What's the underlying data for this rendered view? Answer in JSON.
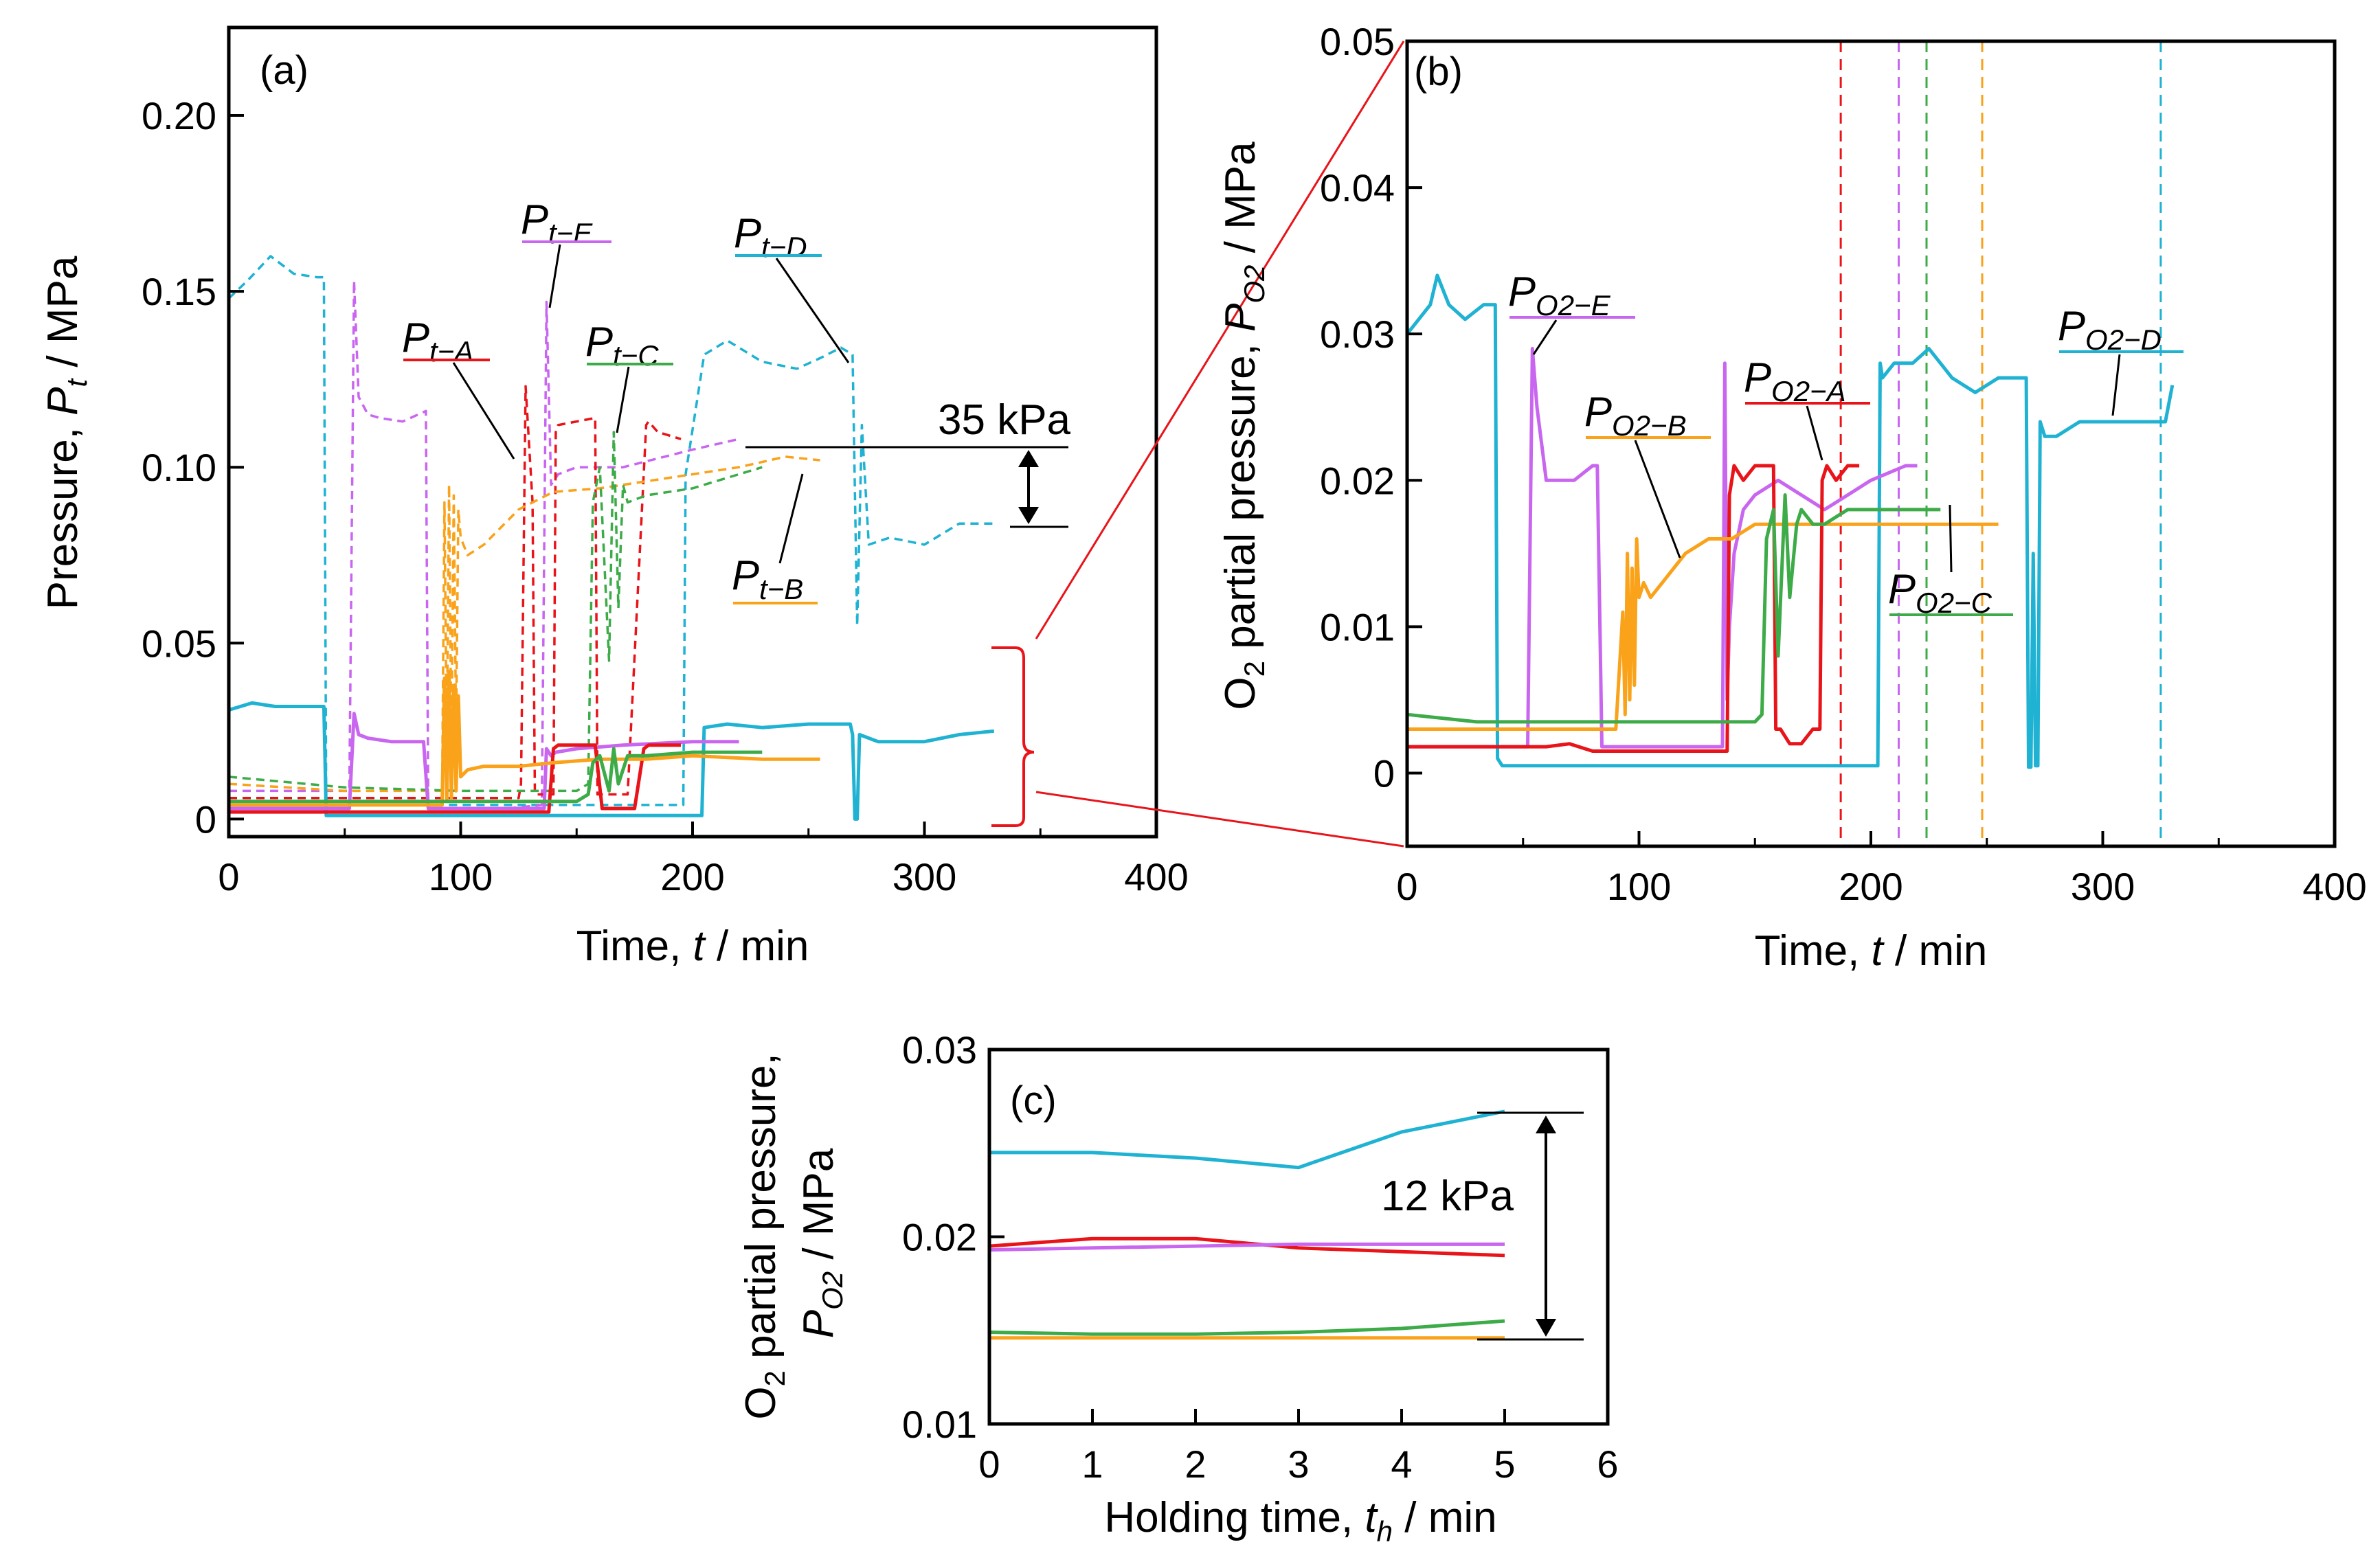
{
  "colors": {
    "A": "#e8141a",
    "B": "#f9a21a",
    "C": "#3cab48",
    "D": "#1fb2d2",
    "E": "#c966f0",
    "bracket": "#e8141a"
  },
  "chart_data": [
    {
      "id": "a",
      "type": "line",
      "panel_label": "(a)",
      "xlabel": "Time, t / min",
      "ylabel": "Pressure, Pt / MPa",
      "xlim": [
        0,
        400
      ],
      "ylim": [
        -0.005,
        0.225
      ],
      "xticks": [
        "0",
        "100",
        "200",
        "300",
        "400"
      ],
      "yticks": [
        "0",
        "0.05",
        "0.10",
        "0.15",
        "0.20"
      ],
      "yticks_values": [
        0,
        0.05,
        0.1,
        0.15,
        0.2
      ],
      "annotation": "35 kPa",
      "series": [
        {
          "key": "D",
          "name": "Pt−D",
          "style": "dashed",
          "x": [
            0,
            8,
            18,
            28,
            38,
            41,
            42,
            60,
            120,
            196,
            197,
            205,
            215,
            230,
            245,
            255,
            264,
            269,
            271,
            273,
            276,
            285,
            300,
            315,
            330
          ],
          "y": [
            0.148,
            0.153,
            0.16,
            0.155,
            0.154,
            0.154,
            0.004,
            0.004,
            0.004,
            0.004,
            0.098,
            0.132,
            0.136,
            0.13,
            0.128,
            0.131,
            0.134,
            0.132,
            0.055,
            0.112,
            0.078,
            0.08,
            0.078,
            0.084,
            0.084
          ]
        },
        {
          "key": "E",
          "name": "Pt−E",
          "style": "dashed",
          "x": [
            0,
            52,
            54,
            56,
            60,
            65,
            75,
            85,
            86,
            100,
            120,
            135,
            137,
            139,
            142,
            150,
            170,
            200,
            220
          ],
          "y": [
            0.008,
            0.008,
            0.153,
            0.12,
            0.115,
            0.114,
            0.113,
            0.116,
            0.003,
            0.003,
            0.003,
            0.004,
            0.147,
            0.095,
            0.098,
            0.1,
            0.1,
            0.105,
            0.108
          ]
        },
        {
          "key": "A",
          "name": "Pt−A",
          "style": "dashed",
          "x": [
            0,
            100,
            125,
            126,
            128,
            131,
            132,
            140,
            141,
            142,
            150,
            158,
            159,
            161,
            165,
            172,
            180,
            181,
            185,
            195
          ],
          "y": [
            0.006,
            0.006,
            0.006,
            0.01,
            0.123,
            0.09,
            0.007,
            0.007,
            0.11,
            0.112,
            0.113,
            0.114,
            0.007,
            0.007,
            0.007,
            0.007,
            0.112,
            0.113,
            0.11,
            0.108
          ]
        },
        {
          "key": "B",
          "name": "Pt−B",
          "style": "dashed",
          "x": [
            0,
            50,
            92,
            93,
            94,
            95,
            96,
            97,
            98,
            99,
            100,
            103,
            110,
            125,
            140,
            160,
            180,
            200,
            220,
            240,
            255
          ],
          "y": [
            0.01,
            0.008,
            0.008,
            0.09,
            0.02,
            0.095,
            0.02,
            0.092,
            0.025,
            0.088,
            0.08,
            0.075,
            0.078,
            0.088,
            0.093,
            0.094,
            0.096,
            0.098,
            0.1,
            0.103,
            0.102
          ]
        },
        {
          "key": "C",
          "name": "Pt−C",
          "style": "dashed",
          "x": [
            0,
            50,
            100,
            150,
            155,
            157,
            160,
            164,
            166,
            168,
            170,
            172,
            180,
            200,
            230
          ],
          "y": [
            0.012,
            0.009,
            0.008,
            0.008,
            0.01,
            0.09,
            0.1,
            0.045,
            0.11,
            0.06,
            0.095,
            0.09,
            0.092,
            0.094,
            0.1
          ]
        },
        {
          "key": "D",
          "name": "Pt−D",
          "style": "solid",
          "x": [
            0,
            10,
            20,
            40,
            41,
            42,
            100,
            150,
            203,
            204,
            205,
            215,
            230,
            250,
            265,
            268,
            269,
            270,
            271,
            272,
            280,
            300,
            315,
            330
          ],
          "y": [
            0.031,
            0.033,
            0.032,
            0.032,
            0.032,
            0.001,
            0.001,
            0.001,
            0.001,
            0.001,
            0.026,
            0.027,
            0.026,
            0.027,
            0.027,
            0.027,
            0.024,
            0.0,
            0.0,
            0.024,
            0.022,
            0.022,
            0.024,
            0.025
          ]
        },
        {
          "key": "E",
          "name": "Pt−E",
          "style": "solid",
          "x": [
            0,
            52,
            54,
            56,
            60,
            70,
            84,
            86,
            100,
            136,
            137,
            139,
            141,
            150,
            170,
            200,
            220
          ],
          "y": [
            0.003,
            0.003,
            0.03,
            0.024,
            0.023,
            0.022,
            0.022,
            0.003,
            0.003,
            0.003,
            0.02,
            0.018,
            0.019,
            0.02,
            0.021,
            0.022,
            0.022
          ]
        },
        {
          "key": "A",
          "name": "Pt−A",
          "style": "solid",
          "x": [
            0,
            100,
            138,
            140,
            142,
            150,
            158,
            161,
            175,
            179,
            181,
            195
          ],
          "y": [
            0.002,
            0.002,
            0.002,
            0.02,
            0.021,
            0.021,
            0.021,
            0.003,
            0.003,
            0.02,
            0.021,
            0.021
          ]
        },
        {
          "key": "B",
          "name": "Pt−B",
          "style": "solid",
          "x": [
            0,
            90,
            92,
            93,
            94,
            95,
            96,
            97,
            98,
            99,
            100,
            103,
            110,
            125,
            140,
            160,
            180,
            200,
            230,
            255
          ],
          "y": [
            0.004,
            0.004,
            0.004,
            0.04,
            0.005,
            0.042,
            0.006,
            0.038,
            0.008,
            0.035,
            0.012,
            0.014,
            0.015,
            0.015,
            0.016,
            0.017,
            0.017,
            0.018,
            0.017,
            0.017
          ]
        },
        {
          "key": "C",
          "name": "Pt−C",
          "style": "solid",
          "x": [
            0,
            100,
            150,
            155,
            157,
            160,
            164,
            166,
            168,
            172,
            180,
            200,
            230
          ],
          "y": [
            0.005,
            0.005,
            0.005,
            0.007,
            0.016,
            0.018,
            0.008,
            0.02,
            0.01,
            0.018,
            0.018,
            0.019,
            0.019
          ]
        }
      ]
    },
    {
      "id": "b",
      "type": "line",
      "panel_label": "(b)",
      "xlabel": "Time, t / min",
      "ylabel": "O2 partial pressure, PO2 / MPa",
      "xlim": [
        0,
        400
      ],
      "ylim": [
        -0.005,
        0.05
      ],
      "xticks": [
        "0",
        "100",
        "200",
        "300",
        "400"
      ],
      "yticks": [
        "0",
        "0.01",
        "0.02",
        "0.03",
        "0.04",
        "0.05"
      ],
      "yticks_values": [
        0,
        0.01,
        0.02,
        0.03,
        0.04,
        0.05
      ],
      "vlines": [
        {
          "key": "A",
          "x": 187
        },
        {
          "key": "E",
          "x": 212
        },
        {
          "key": "C",
          "x": 224
        },
        {
          "key": "B",
          "x": 248
        },
        {
          "key": "D",
          "x": 325
        }
      ],
      "series": [
        {
          "key": "D",
          "name": "PO2−D",
          "x": [
            0,
            5,
            10,
            13,
            18,
            25,
            33,
            38,
            39,
            41,
            80,
            150,
            200,
            203,
            204,
            205,
            210,
            218,
            225,
            235,
            245,
            255,
            265,
            267,
            268,
            269,
            270,
            271,
            272,
            273,
            275,
            280,
            290,
            300,
            310,
            320,
            327,
            330
          ],
          "y": [
            0.03,
            0.031,
            0.032,
            0.034,
            0.032,
            0.031,
            0.032,
            0.032,
            0.001,
            0.0005,
            0.0005,
            0.0005,
            0.0005,
            0.0005,
            0.028,
            0.027,
            0.028,
            0.028,
            0.029,
            0.027,
            0.026,
            0.027,
            0.027,
            0.027,
            0.0004,
            0.0004,
            0.015,
            0.0005,
            0.0005,
            0.024,
            0.023,
            0.023,
            0.024,
            0.024,
            0.024,
            0.024,
            0.024,
            0.0265
          ]
        },
        {
          "key": "E",
          "name": "PO2−E",
          "x": [
            0,
            50,
            52,
            54,
            56,
            60,
            65,
            72,
            80,
            82,
            84,
            100,
            120,
            135,
            136,
            137,
            138,
            139,
            141,
            145,
            150,
            160,
            170,
            180,
            190,
            200,
            215,
            220
          ],
          "y": [
            0.0018,
            0.0018,
            0.0018,
            0.029,
            0.025,
            0.02,
            0.02,
            0.02,
            0.021,
            0.021,
            0.0018,
            0.0018,
            0.0018,
            0.0018,
            0.0018,
            0.028,
            0.005,
            0.01,
            0.015,
            0.018,
            0.019,
            0.02,
            0.019,
            0.018,
            0.019,
            0.02,
            0.021,
            0.021
          ]
        },
        {
          "key": "A",
          "name": "PO2−A",
          "x": [
            0,
            60,
            70,
            80,
            100,
            138,
            139,
            141,
            145,
            150,
            155,
            158,
            159,
            161,
            165,
            170,
            175,
            178,
            179,
            181,
            185,
            190,
            195
          ],
          "y": [
            0.0018,
            0.0018,
            0.002,
            0.0015,
            0.0015,
            0.0015,
            0.019,
            0.021,
            0.02,
            0.021,
            0.021,
            0.021,
            0.003,
            0.003,
            0.002,
            0.002,
            0.003,
            0.003,
            0.02,
            0.021,
            0.02,
            0.021,
            0.021
          ]
        },
        {
          "key": "B",
          "name": "PO2−B",
          "x": [
            0,
            50,
            90,
            93,
            94,
            95,
            96,
            97,
            98,
            99,
            100,
            102,
            105,
            110,
            120,
            130,
            140,
            150,
            160,
            170,
            180,
            190,
            200,
            210,
            220,
            230,
            240,
            250,
            255
          ],
          "y": [
            0.003,
            0.003,
            0.003,
            0.011,
            0.004,
            0.015,
            0.005,
            0.014,
            0.006,
            0.016,
            0.012,
            0.013,
            0.012,
            0.013,
            0.015,
            0.016,
            0.016,
            0.017,
            0.017,
            0.017,
            0.017,
            0.017,
            0.017,
            0.017,
            0.017,
            0.017,
            0.017,
            0.017,
            0.017
          ]
        },
        {
          "key": "C",
          "name": "PO2−C",
          "x": [
            0,
            30,
            60,
            100,
            150,
            153,
            155,
            158,
            160,
            163,
            165,
            168,
            170,
            175,
            180,
            190,
            200,
            210,
            220,
            230
          ],
          "y": [
            0.004,
            0.0035,
            0.0035,
            0.0035,
            0.0035,
            0.004,
            0.016,
            0.018,
            0.008,
            0.019,
            0.012,
            0.017,
            0.018,
            0.017,
            0.017,
            0.018,
            0.018,
            0.018,
            0.018,
            0.018
          ]
        }
      ]
    },
    {
      "id": "c",
      "type": "line",
      "panel_label": "(c)",
      "xlabel": "Holding time, th / min",
      "ylabel": "O2 partial pressure, PO2 / MPa",
      "xlim": [
        0,
        6
      ],
      "ylim": [
        0.01,
        0.03
      ],
      "xticks": [
        "0",
        "1",
        "2",
        "3",
        "4",
        "5",
        "6"
      ],
      "yticks": [
        "0.01",
        "0.02",
        "0.03"
      ],
      "yticks_values": [
        0.01,
        0.02,
        0.03
      ],
      "annotation": "12 kPa",
      "series": [
        {
          "key": "D",
          "name": "PO2−D",
          "x": [
            0,
            1,
            2,
            3,
            4,
            5
          ],
          "y": [
            0.0245,
            0.0245,
            0.0242,
            0.0237,
            0.0256,
            0.0267
          ]
        },
        {
          "key": "A",
          "name": "PO2−A",
          "x": [
            0,
            1,
            2,
            3,
            4,
            5
          ],
          "y": [
            0.0195,
            0.0199,
            0.0199,
            0.0194,
            0.0192,
            0.019
          ]
        },
        {
          "key": "E",
          "name": "PO2−E",
          "x": [
            0,
            1,
            2,
            3,
            4,
            5
          ],
          "y": [
            0.0193,
            0.0194,
            0.0195,
            0.0196,
            0.0196,
            0.0196
          ]
        },
        {
          "key": "C",
          "name": "PO2−C",
          "x": [
            0,
            1,
            2,
            3,
            4,
            5
          ],
          "y": [
            0.0149,
            0.0148,
            0.0148,
            0.0149,
            0.0151,
            0.0155
          ]
        },
        {
          "key": "B",
          "name": "PO2−B",
          "x": [
            0,
            1,
            2,
            3,
            4,
            5
          ],
          "y": [
            0.0146,
            0.0146,
            0.0146,
            0.0146,
            0.0146,
            0.0146
          ]
        }
      ]
    }
  ],
  "labels": {
    "a": {
      "ylabel_parts": {
        "pre": "Pressure,  ",
        "var": "P",
        "sub": "t",
        "post": " / MPa"
      },
      "xlabel_parts": {
        "pre": "Time, ",
        "var": "t",
        "post": " / min"
      },
      "curves": {
        "A": {
          "main": "P",
          "sub": "t−A"
        },
        "B": {
          "main": "P",
          "sub": "t−B"
        },
        "C": {
          "main": "P",
          "sub": "t−C"
        },
        "D": {
          "main": "P",
          "sub": "t−D"
        },
        "E": {
          "main": "P",
          "sub": "t−E"
        }
      }
    },
    "b": {
      "ylabel_parts": {
        "pre": "O",
        "sub1": "2",
        "mid": " partial pressure,  ",
        "var": "P",
        "sub": "O2",
        "post": " / MPa"
      },
      "xlabel_parts": {
        "pre": "Time, ",
        "var": "t",
        "post": " / min"
      },
      "curves": {
        "A": {
          "main": "P",
          "sub": "O2−A"
        },
        "B": {
          "main": "P",
          "sub": "O2−B"
        },
        "C": {
          "main": "P",
          "sub": "O2−C"
        },
        "D": {
          "main": "P",
          "sub": "O2−D"
        },
        "E": {
          "main": "P",
          "sub": "O2−E"
        }
      }
    },
    "c": {
      "ylabel_line1": {
        "pre": "O",
        "sub1": "2",
        "post": " partial pressure,"
      },
      "ylabel_line2": {
        "var": "P",
        "sub": "O2",
        "post": " / MPa"
      },
      "xlabel_parts": {
        "pre": "Holding time, ",
        "var": "t",
        "sub": "h",
        "post": " / min"
      }
    }
  }
}
